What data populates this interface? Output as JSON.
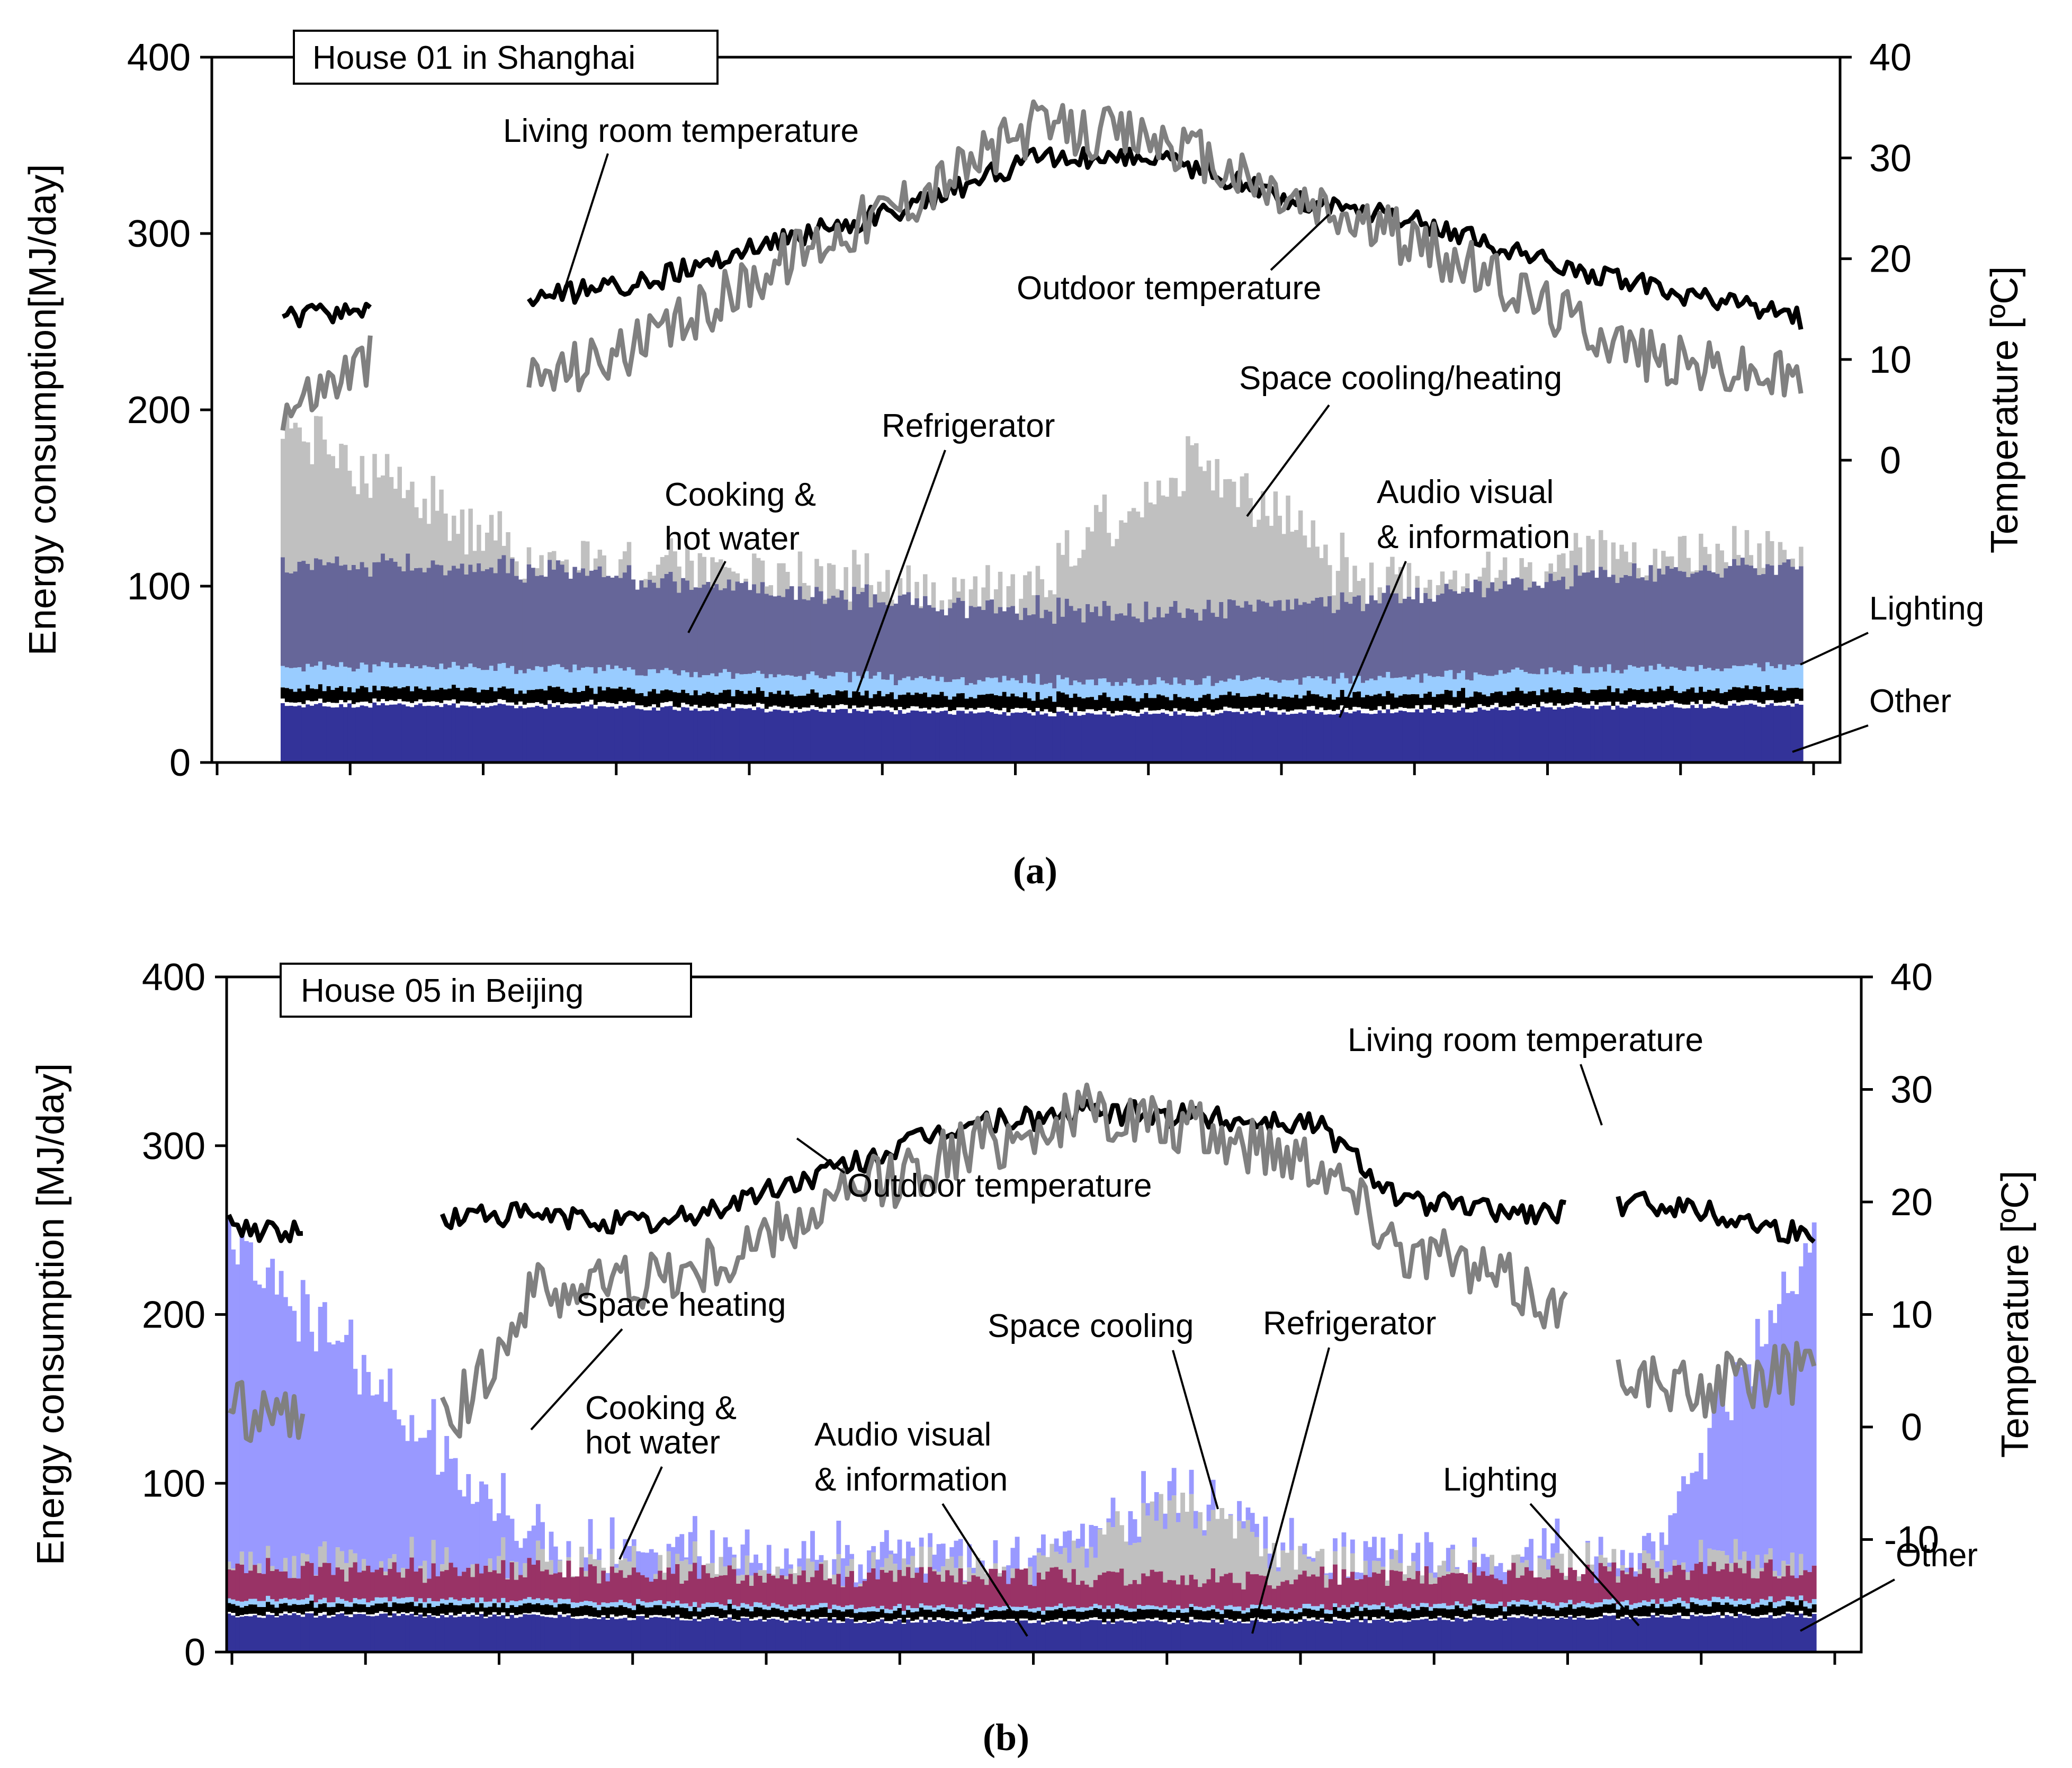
{
  "chart_data": [
    {
      "type": "area",
      "title": "House 01 in Shanghai",
      "caption": "(a)",
      "ylabel": "Energy consumption[MJ/day]",
      "y2label": "Temperature [ºC]",
      "ylim": [
        0,
        400
      ],
      "yticks": [
        0,
        100,
        200,
        300,
        400
      ],
      "y2lim": [
        -30,
        40
      ],
      "y2ticks": [
        0,
        10,
        20,
        30,
        40
      ],
      "days": 365,
      "series": [
        {
          "name": "Other",
          "color": "#333399",
          "base": 27,
          "amp": 5,
          "noise": 3
        },
        {
          "name": "Lighting",
          "color": "#ffffff",
          "base": 2,
          "amp": 0,
          "noise": 1
        },
        {
          "name": "Audio visual & information",
          "color": "#000000",
          "base": 7,
          "amp": 0,
          "noise": 3
        },
        {
          "name": "Refrigerator",
          "color": "#99ccff",
          "base": 8,
          "amp": 4,
          "noise": 3
        },
        {
          "name": "Cooking & hot water",
          "color": "#666699",
          "base": 38,
          "amp": 18,
          "noise": 10
        },
        {
          "name": "Space cooling/heating",
          "color": "#c0c0c0",
          "base": 0,
          "amp": 80,
          "noise": 30
        }
      ],
      "temperature_series": [
        {
          "name": "Living room temperature",
          "color": "#000000",
          "keypoints": [
            [
              0,
              14
            ],
            [
              20,
              15
            ],
            [
              60,
              16
            ],
            [
              90,
              18
            ],
            [
              120,
              22
            ],
            [
              150,
              25
            ],
            [
              180,
              30
            ],
            [
              210,
              30
            ],
            [
              240,
              26
            ],
            [
              270,
              24
            ],
            [
              300,
              20
            ],
            [
              330,
              17
            ],
            [
              364,
              14
            ]
          ]
        },
        {
          "name": "Outdoor temperature",
          "color": "#808080",
          "keypoints": [
            [
              0,
              5
            ],
            [
              20,
              10
            ],
            [
              60,
              8
            ],
            [
              90,
              12
            ],
            [
              120,
              20
            ],
            [
              150,
              26
            ],
            [
              180,
              33
            ],
            [
              210,
              32
            ],
            [
              240,
              26
            ],
            [
              270,
              22
            ],
            [
              300,
              16
            ],
            [
              330,
              10
            ],
            [
              364,
              8
            ]
          ]
        }
      ],
      "gaps": [
        [
          22,
          58
        ]
      ],
      "annotations": [
        {
          "text": "Living room temperature"
        },
        {
          "text": "Outdoor temperature"
        },
        {
          "text": "Space cooling/heating"
        },
        {
          "text": "Refrigerator"
        },
        {
          "text": "Cooking &"
        },
        {
          "text": "hot water"
        },
        {
          "text": "Audio visual"
        },
        {
          "text": "& information"
        },
        {
          "text": "Lighting"
        },
        {
          "text": "Other"
        }
      ]
    },
    {
      "type": "area",
      "title": "House 05 in Beijing",
      "caption": "(b)",
      "ylabel": "Energy consumption [MJ/day]",
      "y2label": "Temperature [ºC]",
      "ylim": [
        0,
        400
      ],
      "yticks": [
        0,
        100,
        200,
        300,
        400
      ],
      "y2lim": [
        -20,
        40
      ],
      "y2ticks": [
        -10,
        0,
        10,
        20,
        30,
        40
      ],
      "days": 365,
      "series": [
        {
          "name": "Other",
          "color": "#333399",
          "base": 17,
          "amp": 4,
          "noise": 3
        },
        {
          "name": "Lighting",
          "color": "#ffffff",
          "base": 1,
          "amp": 0,
          "noise": 1
        },
        {
          "name": "Audio visual & information",
          "color": "#000000",
          "base": 5,
          "amp": 0,
          "noise": 2
        },
        {
          "name": "Refrigerator",
          "color": "#99ccff",
          "base": 2,
          "amp": 1,
          "noise": 1
        },
        {
          "name": "Cooking & hot water",
          "color": "#993366",
          "base": 15,
          "amp": 0,
          "noise": 12
        },
        {
          "name": "Space cooling",
          "color": "#c0c0c0",
          "base": 0,
          "amp": 40,
          "noise": 20
        },
        {
          "name": "Space heating",
          "color": "#9999ff",
          "base": 0,
          "amp": 190,
          "noise": 30
        }
      ],
      "temperature_series": [
        {
          "name": "Living room temperature",
          "color": "#000000",
          "keypoints": [
            [
              0,
              18
            ],
            [
              20,
              17
            ],
            [
              60,
              19
            ],
            [
              100,
              18
            ],
            [
              140,
              23
            ],
            [
              170,
              27
            ],
            [
              200,
              28
            ],
            [
              250,
              27
            ],
            [
              270,
              20
            ],
            [
              300,
              19
            ],
            [
              330,
              20
            ],
            [
              364,
              17
            ]
          ]
        },
        {
          "name": "Outdoor temperature",
          "color": "#808080",
          "keypoints": [
            [
              0,
              2
            ],
            [
              20,
              0
            ],
            [
              50,
              0
            ],
            [
              70,
              12
            ],
            [
              110,
              14
            ],
            [
              140,
              20
            ],
            [
              170,
              25
            ],
            [
              200,
              28
            ],
            [
              250,
              24
            ],
            [
              270,
              16
            ],
            [
              300,
              12
            ],
            [
              330,
              3
            ],
            [
              364,
              5
            ]
          ]
        }
      ],
      "gaps": [
        [
          18,
          48
        ],
        [
          308,
          318
        ]
      ],
      "annotations": [
        {
          "text": "Living room temperature"
        },
        {
          "text": "Outdoor temperature"
        },
        {
          "text": "Space heating"
        },
        {
          "text": "Space cooling"
        },
        {
          "text": "Refrigerator"
        },
        {
          "text": "Cooking &"
        },
        {
          "text": "hot water"
        },
        {
          "text": "Audio visual"
        },
        {
          "text": "& information"
        },
        {
          "text": "Lighting"
        },
        {
          "text": "Other"
        }
      ]
    }
  ]
}
